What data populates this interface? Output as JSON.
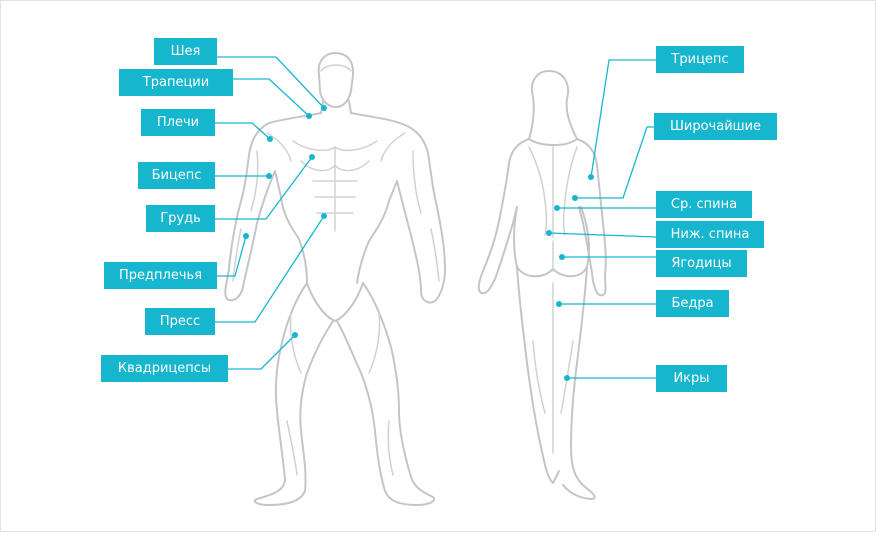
{
  "accent_color": "#17b6cf",
  "outline_color": "#c3c6c8",
  "muscle_groups": {
    "neck": "Шея",
    "trapezius": "Трапеции",
    "shoulders": "Плечи",
    "biceps": "Бицепс",
    "chest": "Грудь",
    "forearms": "Предплечья",
    "abs": "Пресс",
    "quadriceps": "Квадрицепсы",
    "triceps": "Трицепс",
    "lats": "Широчайшие",
    "middle_back": "Ср. спина",
    "lower_back": "Ниж. спина",
    "glutes": "Ягодицы",
    "hamstrings": "Бедра",
    "calves": "Икры"
  }
}
